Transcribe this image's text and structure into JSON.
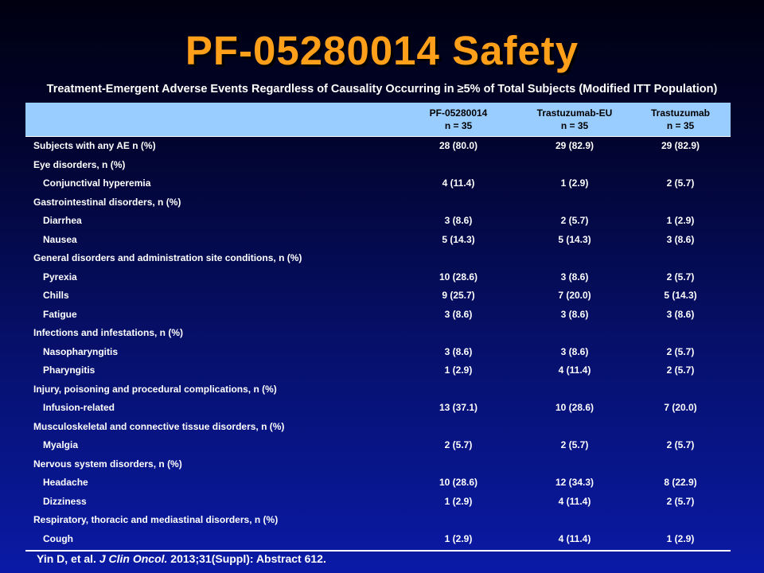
{
  "slide": {
    "title": "PF-05280014 Safety",
    "subtitle": "Treatment-Emergent Adverse Events Regardless of Causality Occurring in ≥5% of Total Subjects (Modified ITT Population)"
  },
  "table": {
    "headers": [
      {
        "name": "PF-05280014",
        "n": "n = 35"
      },
      {
        "name": "Trastuzumab-EU",
        "n": "n = 35"
      },
      {
        "name": "Trastuzumab",
        "n": "n = 35"
      }
    ],
    "rows": [
      {
        "label": "Subjects with any AE n (%)",
        "indent": false,
        "values": [
          "28 (80.0)",
          "29 (82.9)",
          "29 (82.9)"
        ]
      },
      {
        "label": "Eye disorders, n (%)",
        "indent": false,
        "values": [
          "",
          "",
          ""
        ]
      },
      {
        "label": "Conjunctival hyperemia",
        "indent": true,
        "values": [
          "4 (11.4)",
          "1 (2.9)",
          "2 (5.7)"
        ]
      },
      {
        "label": "Gastrointestinal disorders, n (%)",
        "indent": false,
        "values": [
          "",
          "",
          ""
        ]
      },
      {
        "label": "Diarrhea",
        "indent": true,
        "values": [
          "3 (8.6)",
          "2 (5.7)",
          "1 (2.9)"
        ]
      },
      {
        "label": "Nausea",
        "indent": true,
        "values": [
          "5 (14.3)",
          "5 (14.3)",
          "3 (8.6)"
        ]
      },
      {
        "label": "General disorders and administration site conditions, n (%)",
        "indent": false,
        "values": [
          "",
          "",
          ""
        ]
      },
      {
        "label": "Pyrexia",
        "indent": true,
        "values": [
          "10 (28.6)",
          "3 (8.6)",
          "2 (5.7)"
        ]
      },
      {
        "label": "Chills",
        "indent": true,
        "values": [
          "9 (25.7)",
          "7 (20.0)",
          "5 (14.3)"
        ]
      },
      {
        "label": "Fatigue",
        "indent": true,
        "values": [
          "3 (8.6)",
          "3 (8.6)",
          "3 (8.6)"
        ]
      },
      {
        "label": "Infections and infestations, n (%)",
        "indent": false,
        "values": [
          "",
          "",
          ""
        ]
      },
      {
        "label": "Nasopharyngitis",
        "indent": true,
        "values": [
          "3 (8.6)",
          "3 (8.6)",
          "2 (5.7)"
        ]
      },
      {
        "label": "Pharyngitis",
        "indent": true,
        "values": [
          "1 (2.9)",
          "4 (11.4)",
          "2 (5.7)"
        ]
      },
      {
        "label": "Injury, poisoning and procedural complications, n (%)",
        "indent": false,
        "values": [
          "",
          "",
          ""
        ]
      },
      {
        "label": "Infusion-related",
        "indent": true,
        "values": [
          "13 (37.1)",
          "10 (28.6)",
          "7 (20.0)"
        ]
      },
      {
        "label": "Musculoskeletal and connective tissue disorders, n (%)",
        "indent": false,
        "values": [
          "",
          "",
          ""
        ]
      },
      {
        "label": "Myalgia",
        "indent": true,
        "values": [
          "2 (5.7)",
          "2 (5.7)",
          "2 (5.7)"
        ]
      },
      {
        "label": "Nervous system disorders, n (%)",
        "indent": false,
        "values": [
          "",
          "",
          ""
        ]
      },
      {
        "label": "Headache",
        "indent": true,
        "values": [
          "10 (28.6)",
          "12 (34.3)",
          "8 (22.9)"
        ]
      },
      {
        "label": "Dizziness",
        "indent": true,
        "values": [
          "1 (2.9)",
          "4 (11.4)",
          "2 (5.7)"
        ]
      },
      {
        "label": "Respiratory, thoracic and mediastinal disorders, n (%)",
        "indent": false,
        "values": [
          "",
          "",
          ""
        ]
      },
      {
        "label": "Cough",
        "indent": true,
        "values": [
          "1 (2.9)",
          "4 (11.4)",
          "1 (2.9)"
        ]
      }
    ]
  },
  "citation": {
    "authors": "Yin D, et al. ",
    "journal": "J Clin Oncol.",
    "details": "  2013;31(Suppl): Abstract 612."
  },
  "colors": {
    "title": "#ff9f1a",
    "header_background": "#99ccff",
    "background_top": "#000010",
    "background_bottom": "#0a1aa6"
  }
}
